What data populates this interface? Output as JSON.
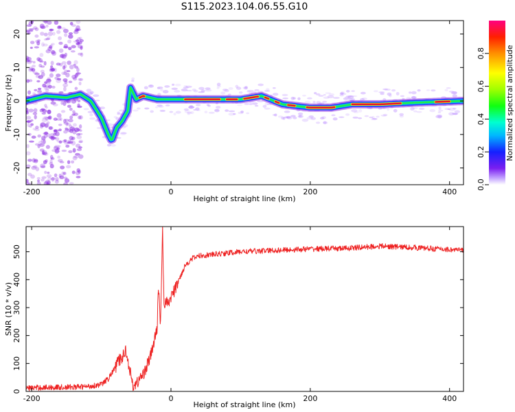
{
  "title": "S115.2023.104.06.55.G10",
  "colors": {
    "spectrum_hot": "#e8102a",
    "snr_line": "#ee2222",
    "weak_signal": "#8a2be2"
  },
  "chart_data": [
    {
      "type": "heatmap",
      "xlabel": "Height of straight line (km)",
      "ylabel": "Frequency (Hz)",
      "xlim": [
        -208,
        420
      ],
      "ylim": [
        -25,
        24
      ],
      "x_ticks": [
        -200,
        0,
        200,
        400
      ],
      "y_ticks": [
        -20,
        -10,
        0,
        10,
        20
      ],
      "colorbar": {
        "label": "Normalized spectral amplitude",
        "range": [
          0.0,
          1.0
        ],
        "ticks": [
          "0.0",
          "0.2",
          "0.4",
          "0.6",
          "0.8"
        ],
        "colormap": "rainbow (purple to red)"
      },
      "ridge": {
        "x": [
          -208,
          -180,
          -150,
          -130,
          -115,
          -100,
          -90,
          -85,
          -78,
          -70,
          -62,
          -58,
          -50,
          -40,
          -20,
          0,
          50,
          100,
          130,
          160,
          180,
          200,
          230,
          260,
          300,
          350,
          420
        ],
        "y": [
          0,
          1.5,
          1,
          2,
          0,
          -5,
          -10,
          -12,
          -8,
          -6,
          -3,
          4,
          0.5,
          1.5,
          0.5,
          0.5,
          0.5,
          0.5,
          1.5,
          -1,
          -1.5,
          -2,
          -2,
          -1,
          -1,
          -0.5,
          0
        ]
      }
    },
    {
      "type": "line",
      "xlabel": "Height of straight line (km)",
      "ylabel": "SNR (10 * v/v)",
      "xlim": [
        -208,
        420
      ],
      "ylim": [
        0,
        590
      ],
      "x_ticks": [
        -200,
        0,
        200,
        400
      ],
      "y_ticks": [
        0,
        100,
        200,
        300,
        400,
        500
      ],
      "series": [
        {
          "x": [
            -208,
            -180,
            -150,
            -120,
            -100,
            -90,
            -80,
            -75,
            -70,
            -65,
            -60,
            -55,
            -50,
            -45,
            -40,
            -35,
            -30,
            -25,
            -20,
            -18,
            -15,
            -12,
            -10,
            -8,
            -5,
            0,
            5,
            10,
            15,
            20,
            30,
            40,
            60,
            80,
            100,
            150,
            200,
            250,
            300,
            350,
            420
          ],
          "y": [
            12,
            14,
            15,
            17,
            25,
            45,
            85,
            110,
            120,
            150,
            90,
            20,
            25,
            45,
            60,
            90,
            120,
            170,
            220,
            380,
            240,
            590,
            300,
            330,
            310,
            340,
            360,
            390,
            420,
            450,
            475,
            485,
            490,
            495,
            500,
            505,
            510,
            512,
            520,
            515,
            505
          ],
          "noise": 20
        }
      ]
    }
  ]
}
